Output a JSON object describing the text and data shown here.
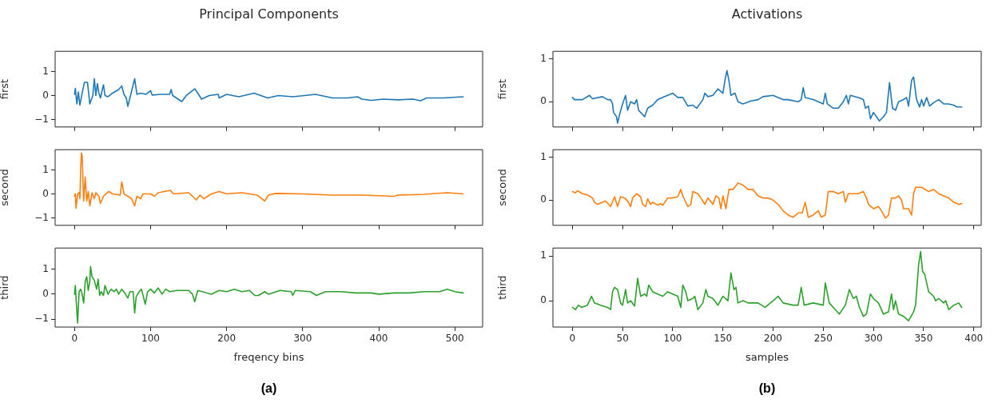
{
  "chart_data": [
    {
      "type": "line",
      "title": "Principal Components",
      "ylabel": "first",
      "tick_labels": "y",
      "xlim": [
        -25.55,
        536.55
      ],
      "ylim": [
        -1.31,
        1.84
      ],
      "xticks": [
        0,
        100,
        200,
        300,
        400,
        500
      ],
      "yticks": [
        -1,
        0,
        1
      ],
      "x": [
        0,
        1,
        3,
        5,
        7,
        10,
        13,
        17,
        20,
        24,
        26,
        28,
        30,
        32,
        34,
        38,
        40,
        44,
        50,
        58,
        62,
        65,
        68,
        70,
        74,
        79,
        82,
        87,
        94,
        100,
        102,
        113,
        125,
        127,
        129,
        141,
        147,
        158,
        163,
        167,
        177,
        189,
        190,
        200,
        216,
        236,
        254,
        268,
        287,
        317,
        339,
        359,
        372,
        378,
        390,
        406,
        426,
        445,
        455,
        463,
        485,
        511
      ],
      "series": [
        {
          "color": "#1f77b4",
          "values": [
            0.05,
            0.3,
            -0.35,
            0.15,
            -0.4,
            0.1,
            0.55,
            0.55,
            -0.35,
            0,
            0.7,
            0,
            0.5,
            0.1,
            -0.1,
            0.45,
            0,
            -0.05,
            0.1,
            0.25,
            0.4,
            0.05,
            -0.1,
            -0.45,
            0.05,
            0.7,
            0.05,
            0.1,
            0.05,
            0.2,
            0.02,
            0.05,
            0.05,
            0.25,
            0,
            -0.25,
            0,
            0.28,
            0.05,
            -0.15,
            0,
            0.05,
            -0.1,
            0.05,
            -0.05,
            0.1,
            -0.1,
            0,
            -0.05,
            0.05,
            -0.1,
            -0.1,
            -0.05,
            -0.15,
            -0.2,
            -0.15,
            -0.18,
            -0.15,
            -0.22,
            -0.1,
            -0.1,
            -0.05
          ]
        }
      ]
    },
    {
      "type": "line",
      "title": "Activations",
      "ylabel": "first",
      "tick_labels": "y",
      "xlim": [
        -19.4,
        407.4
      ],
      "ylim": [
        -0.59,
        1.18
      ],
      "xticks": [
        0,
        50,
        100,
        150,
        200,
        250,
        300,
        350,
        400
      ],
      "yticks": [
        0,
        1
      ],
      "x": [
        0,
        2,
        5,
        10,
        17,
        20,
        30,
        35,
        38,
        40,
        41,
        44,
        45,
        47,
        50,
        53,
        55,
        58,
        62,
        64,
        66,
        70,
        72,
        75,
        80,
        85,
        92,
        100,
        105,
        110,
        115,
        120,
        124,
        130,
        132,
        135,
        140,
        145,
        150,
        152,
        154,
        156,
        158,
        162,
        165,
        170,
        178,
        185,
        190,
        200,
        205,
        210,
        215,
        225,
        228,
        230,
        232,
        240,
        250,
        252,
        254,
        260,
        265,
        270,
        273,
        275,
        277,
        285,
        290,
        292,
        295,
        297,
        300,
        303,
        306,
        310,
        313,
        316,
        319,
        322,
        325,
        330,
        333,
        335,
        338,
        340,
        343,
        346,
        348,
        350,
        353,
        356,
        360,
        365,
        370,
        375,
        380,
        383,
        388
      ],
      "series": [
        {
          "color": "#1f77b4",
          "values": [
            0.1,
            0.05,
            0.05,
            0.05,
            0.15,
            0.07,
            0.12,
            0.05,
            0.05,
            -0.05,
            -0.25,
            -0.35,
            -0.5,
            -0.3,
            -0.05,
            0.15,
            -0.2,
            0,
            -0.05,
            0.05,
            -0.2,
            -0.3,
            -0.35,
            -0.15,
            -0.08,
            0.05,
            0.12,
            0.2,
            0.1,
            0.1,
            -0.1,
            -0.08,
            -0.15,
            0.05,
            0.2,
            0.12,
            0.15,
            0.3,
            0.2,
            0.5,
            0.73,
            0.5,
            0.15,
            0.2,
            0,
            -0.05,
            0.02,
            0.05,
            0.12,
            0.15,
            0.1,
            0.05,
            0.05,
            0,
            0.05,
            0.33,
            0.1,
            0.05,
            -0.05,
            0.2,
            -0.05,
            -0.15,
            -0.15,
            0,
            0.15,
            -0.05,
            0.15,
            0.1,
            0.05,
            -0.15,
            -0.1,
            -0.4,
            -0.25,
            -0.35,
            -0.45,
            -0.35,
            -0.25,
            0.45,
            -0.15,
            -0.2,
            0,
            0.05,
            0.1,
            -0.1,
            0.5,
            0.58,
            0.05,
            -0.12,
            0.05,
            -0.1,
            0.1,
            -0.1,
            -0.02,
            0.05,
            -0.05,
            -0.05,
            -0.08,
            -0.12,
            -0.12
          ]
        }
      ]
    },
    {
      "type": "line",
      "ylabel": "second",
      "tick_labels": "y",
      "xlim": [
        -25.55,
        536.55
      ],
      "ylim": [
        -1.31,
        1.84
      ],
      "xticks": [
        0,
        100,
        200,
        300,
        400,
        500
      ],
      "yticks": [
        -1,
        0,
        1
      ],
      "x": [
        0,
        1,
        2,
        4,
        6,
        7,
        8,
        9,
        10,
        12,
        14,
        16,
        18,
        20,
        23,
        26,
        28,
        32,
        34,
        38,
        45,
        50,
        60,
        62,
        65,
        70,
        75,
        79,
        82,
        87,
        90,
        100,
        105,
        110,
        126,
        130,
        150,
        160,
        165,
        170,
        180,
        190,
        200,
        220,
        240,
        250,
        255,
        265,
        300,
        340,
        380,
        420,
        425,
        460,
        490,
        511
      ],
      "series": [
        {
          "color": "#ff7f0e",
          "values": [
            -0.1,
            0,
            -0.6,
            0,
            0.05,
            -0.2,
            1.0,
            1.7,
            1.6,
            -0.3,
            0.7,
            -0.3,
            0.1,
            -0.5,
            0.05,
            -0.2,
            0.05,
            -0.1,
            -0.4,
            -0.1,
            0.1,
            0,
            -0.05,
            0.5,
            0,
            -0.1,
            -0.2,
            -0.5,
            -0.1,
            -0.2,
            0,
            0,
            -0.1,
            0.05,
            0.15,
            0,
            0.05,
            -0.25,
            -0.05,
            -0.2,
            0,
            0.1,
            0,
            0.05,
            -0.05,
            -0.3,
            -0.05,
            0.02,
            0,
            -0.05,
            -0.05,
            -0.1,
            -0.05,
            -0.02,
            0.05,
            0
          ]
        }
      ]
    },
    {
      "type": "line",
      "ylabel": "second",
      "tick_labels": "y",
      "xlim": [
        -19.4,
        407.4
      ],
      "ylim": [
        -0.59,
        1.18
      ],
      "xticks": [
        0,
        50,
        100,
        150,
        200,
        250,
        300,
        350,
        400
      ],
      "yticks": [
        0,
        1
      ],
      "x": [
        0,
        3,
        5,
        10,
        15,
        18,
        20,
        22,
        25,
        30,
        33,
        38,
        42,
        45,
        48,
        52,
        55,
        58,
        60,
        64,
        68,
        70,
        73,
        75,
        78,
        80,
        85,
        88,
        90,
        95,
        100,
        105,
        108,
        110,
        112,
        115,
        118,
        120,
        125,
        128,
        132,
        135,
        140,
        143,
        146,
        148,
        150,
        153,
        156,
        160,
        165,
        170,
        175,
        180,
        185,
        190,
        195,
        200,
        205,
        210,
        215,
        220,
        225,
        229,
        232,
        235,
        240,
        245,
        248,
        252,
        255,
        260,
        265,
        270,
        272,
        275,
        280,
        285,
        290,
        293,
        295,
        300,
        305,
        308,
        312,
        315,
        318,
        322,
        325,
        328,
        330,
        335,
        338,
        340,
        342,
        348,
        355,
        360,
        365,
        370,
        375,
        380,
        385,
        388
      ],
      "series": [
        {
          "color": "#ff7f0e",
          "values": [
            0.2,
            0.17,
            0.22,
            0.15,
            0.12,
            0.08,
            0.05,
            -0.05,
            -0.1,
            -0.05,
            -0.02,
            -0.15,
            0.08,
            -0.15,
            0.08,
            0.05,
            -0.02,
            -0.15,
            0.05,
            0.15,
            0.08,
            -0.1,
            -0.15,
            0.03,
            -0.1,
            -0.05,
            -0.12,
            -0.08,
            -0.12,
            0.05,
            0.05,
            0.08,
            0.25,
            0.1,
            0,
            -0.15,
            -0.1,
            0.2,
            0.15,
            0.05,
            -0.1,
            0.05,
            -0.1,
            0.1,
            0.05,
            -0.2,
            0.1,
            -0.2,
            0.25,
            0.25,
            0.4,
            0.35,
            0.25,
            0.25,
            0.1,
            0.05,
            0.05,
            0,
            -0.1,
            -0.25,
            -0.35,
            -0.4,
            -0.3,
            -0.3,
            -0.05,
            -0.4,
            -0.35,
            -0.25,
            -0.4,
            -0.35,
            0.2,
            0.2,
            0.15,
            0.2,
            -0.05,
            0.15,
            0.15,
            0.15,
            0.2,
            0.05,
            -0.1,
            -0.2,
            -0.15,
            -0.25,
            -0.42,
            -0.35,
            0.05,
            0.05,
            0.1,
            0,
            -0.2,
            -0.2,
            -0.35,
            0.15,
            0.3,
            0.3,
            0.2,
            0.25,
            0.15,
            0.1,
            0.05,
            -0.05,
            -0.1,
            -0.08
          ]
        }
      ]
    },
    {
      "type": "line",
      "ylabel": "third",
      "xlabel": "freqency bins",
      "annotations": [
        "(a)"
      ],
      "xlim": [
        -25.55,
        536.55
      ],
      "ylim": [
        -1.31,
        1.84
      ],
      "xticks": [
        0,
        100,
        200,
        300,
        400,
        500
      ],
      "yticks": [
        -1,
        0,
        1
      ],
      "x": [
        0,
        1,
        2,
        4,
        6,
        8,
        10,
        12,
        14,
        16,
        18,
        20,
        21,
        23,
        26,
        29,
        31,
        33,
        35,
        38,
        40,
        44,
        48,
        52,
        55,
        58,
        62,
        66,
        70,
        73,
        77,
        79,
        81,
        85,
        88,
        93,
        96,
        100,
        105,
        110,
        115,
        120,
        125,
        135,
        150,
        155,
        158,
        162,
        180,
        190,
        200,
        210,
        220,
        230,
        237,
        242,
        250,
        255,
        270,
        285,
        287,
        290,
        310,
        318,
        330,
        350,
        370,
        390,
        400,
        420,
        440,
        460,
        480,
        490,
        500,
        511
      ],
      "series": [
        {
          "color": "#2ca02c",
          "values": [
            0,
            0.35,
            -0.2,
            -1.15,
            0.1,
            0.2,
            0,
            -0.35,
            0.5,
            0.7,
            0.15,
            0.5,
            1.1,
            0.7,
            0.55,
            0.2,
            0.6,
            -0.05,
            0.1,
            -0.05,
            0.35,
            0,
            0.2,
            0.1,
            0.2,
            0,
            0.2,
            0.05,
            -0.15,
            0.1,
            0.1,
            -0.75,
            -0.1,
            0.1,
            0.2,
            -0.4,
            0.1,
            0.2,
            0.05,
            0.25,
            0,
            0.2,
            0.1,
            0.15,
            0.15,
            0,
            -0.3,
            0.15,
            0,
            0.15,
            0.1,
            0.2,
            0.1,
            0.15,
            -0.05,
            -0.05,
            0.1,
            0,
            0.15,
            0.1,
            -0.05,
            0.15,
            0.1,
            -0.05,
            0.1,
            0.1,
            0.05,
            0.05,
            0,
            0.05,
            0.05,
            0.1,
            0.1,
            0.2,
            0.1,
            0.05
          ]
        }
      ]
    },
    {
      "type": "line",
      "ylabel": "third",
      "xlabel": "samples",
      "annotations": [
        "(b)"
      ],
      "xlim": [
        -19.4,
        407.4
      ],
      "ylim": [
        -0.59,
        1.18
      ],
      "xticks": [
        0,
        50,
        100,
        150,
        200,
        250,
        300,
        350,
        400
      ],
      "yticks": [
        0,
        1
      ],
      "x": [
        0,
        3,
        6,
        9,
        15,
        19,
        22,
        28,
        35,
        38,
        40,
        42,
        45,
        48,
        50,
        53,
        55,
        58,
        62,
        65,
        68,
        72,
        74,
        76,
        80,
        90,
        95,
        100,
        105,
        108,
        110,
        113,
        115,
        120,
        122,
        125,
        130,
        133,
        135,
        140,
        145,
        150,
        155,
        158,
        161,
        163,
        165,
        170,
        175,
        185,
        192,
        200,
        205,
        210,
        220,
        225,
        228,
        231,
        240,
        250,
        252,
        256,
        262,
        266,
        272,
        276,
        280,
        283,
        286,
        290,
        293,
        297,
        300,
        305,
        310,
        315,
        318,
        320,
        322,
        325,
        330,
        335,
        340,
        342,
        345,
        347,
        349,
        351,
        355,
        360,
        362,
        365,
        370,
        372,
        375,
        380,
        385,
        388
      ],
      "series": [
        {
          "color": "#2ca02c",
          "values": [
            -0.15,
            -0.2,
            -0.1,
            -0.15,
            -0.1,
            0.1,
            -0.05,
            -0.1,
            -0.15,
            -0.2,
            0.2,
            0.3,
            0.25,
            -0.05,
            -0.1,
            0.25,
            -0.05,
            0,
            -0.12,
            0.5,
            0.1,
            0.15,
            0.1,
            0.35,
            0.2,
            0.1,
            0.2,
            0.15,
            0.1,
            -0.15,
            0.35,
            0.2,
            0,
            0.05,
            0.1,
            -0.2,
            -0.05,
            0.25,
            0.1,
            0.05,
            -0.1,
            0.1,
            0,
            0.62,
            0.25,
            0.3,
            -0.05,
            0,
            -0.05,
            -0.05,
            -0.15,
            0,
            0.1,
            -0.05,
            -0.1,
            -0.1,
            0.3,
            -0.1,
            -0.05,
            -0.1,
            0.4,
            -0.05,
            -0.2,
            -0.3,
            -0.1,
            0.25,
            0.05,
            0.1,
            -0.15,
            -0.35,
            -0.3,
            0.15,
            0.05,
            -0.05,
            -0.3,
            -0.25,
            0.15,
            -0.2,
            0,
            -0.3,
            -0.35,
            -0.45,
            -0.25,
            -0.1,
            0.8,
            1.1,
            0.65,
            0.6,
            0.2,
            0.1,
            0,
            0.05,
            -0.05,
            0,
            -0.2,
            -0.1,
            -0.05,
            -0.15
          ]
        }
      ]
    }
  ]
}
